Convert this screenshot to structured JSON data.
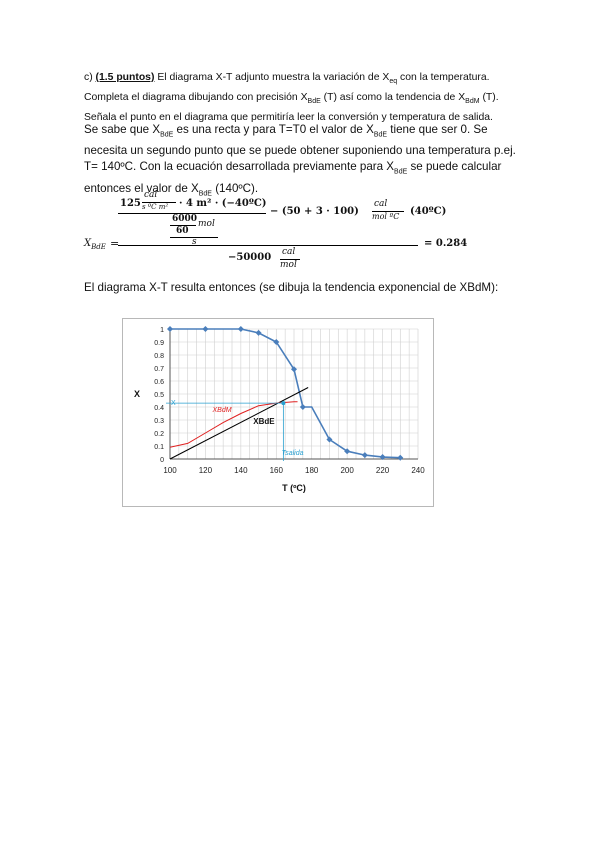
{
  "intro": {
    "prefix": "c) ",
    "points": "(1.5 puntos)",
    "text": " El diagrama X-T adjunto muestra la variación de X",
    "sub1": "eq",
    "text2": " con la temperatura. Completa el diagrama dibujando con precisión X",
    "sub2": "BdE",
    "text3": " (T) así como la tendencia de X",
    "sub3": "BdM",
    "text4": " (T). Señala el punto en el diagrama que permitiría leer la conversión y temperatura de salida."
  },
  "para2": {
    "a": "Se sabe que X",
    "s1": "BdE",
    "b": " es una recta y para T=T0 el valor de X",
    "s2": "BdE",
    "c": " tiene que ser 0. Se necesita un segundo punto que se puede obtener suponiendo una temperatura p.ej. T= 140ºC. Con la ecuación desarrollada previamente para  X",
    "s3": "BdE",
    "d": " se puede calcular entonces el valor de X",
    "s4": "BdE",
    "e": " (140ºC)."
  },
  "equation": {
    "lhs": "X",
    "lhs_sub": "BdE",
    "eq": "=",
    "n125": "125",
    "cal": "cal",
    "s_c_m2": "s ºC m²",
    "mult_area": "· 4 m² · (−40ºC)",
    "n6000": "6000",
    "n60": "60",
    "mol": "mol",
    "s": "s",
    "minus_mid": "− (50 + 3 · 100)",
    "cal2": "cal",
    "molc": "mol ºC",
    "t40": "(40ºC)",
    "den": "−50000",
    "cal3": "cal",
    "mol3": "mol",
    "result": "= 0.284"
  },
  "para3": "El diagrama X-T resulta entonces (se dibuja la tendencia exponencial de XBdM):",
  "chart_data": {
    "type": "line",
    "xlabel": "T (ºC)",
    "ylabel": "X",
    "xlim": [
      100,
      240
    ],
    "ylim": [
      0,
      1
    ],
    "xticks": [
      100,
      120,
      140,
      160,
      180,
      200,
      220,
      240
    ],
    "yticks": [
      0,
      0.1,
      0.2,
      0.3,
      0.4,
      0.5,
      0.6,
      0.7,
      0.8,
      0.9,
      1
    ],
    "grid": true,
    "series": [
      {
        "color": "#4a7ebb",
        "x": [
          100,
          120,
          140,
          150,
          160,
          170,
          175,
          180,
          190,
          200,
          210,
          220,
          230
        ],
        "y": [
          1,
          1,
          1,
          0.97,
          0.9,
          0.69,
          0.4,
          0.4,
          0.15,
          0.06,
          0.03,
          0.015,
          0.01
        ],
        "markers": [
          100,
          120,
          140,
          150,
          160,
          170,
          175,
          190,
          200,
          210,
          220,
          230
        ]
      },
      {
        "color": "#000000",
        "x": [
          100,
          178
        ],
        "y": [
          0,
          0.55
        ]
      },
      {
        "color": "#e02020",
        "x": [
          100,
          110,
          120,
          130,
          140,
          150,
          160,
          170,
          172
        ],
        "y": [
          0.09,
          0.12,
          0.2,
          0.28,
          0.35,
          0.41,
          0.43,
          0.44,
          0.44
        ]
      }
    ],
    "annotations": {
      "xbdm": "XBdM",
      "x_axis_mark": "X",
      "xbde": "XBdE",
      "tsalida": "Tsalida"
    },
    "operating_point": {
      "x": 164,
      "y": 0.43
    }
  }
}
